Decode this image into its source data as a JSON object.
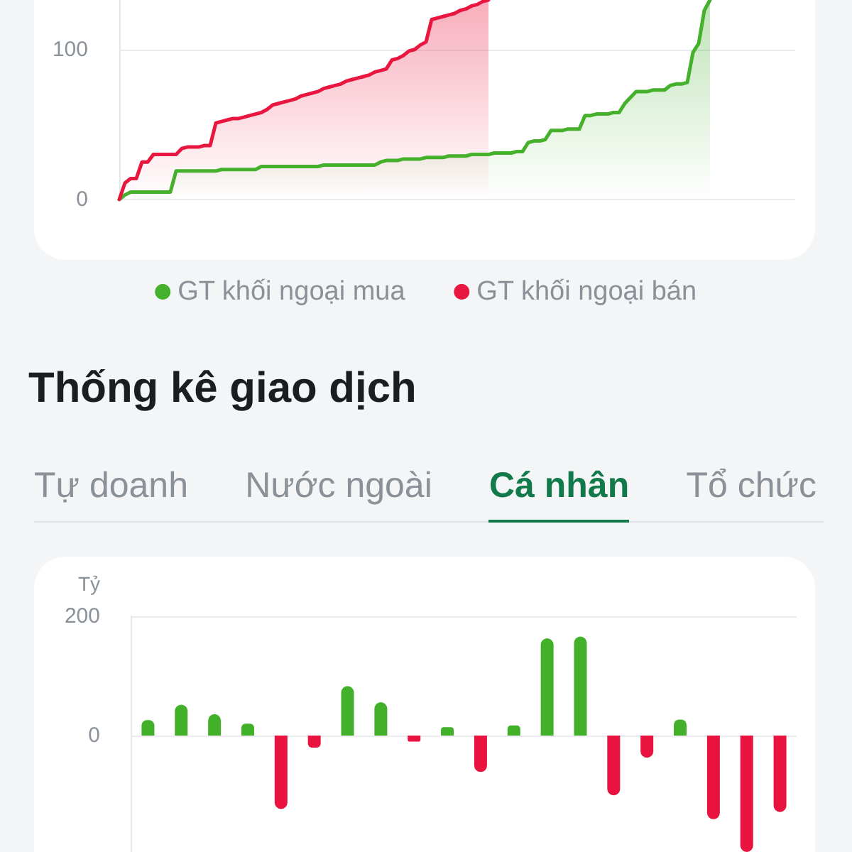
{
  "chart_data": [
    {
      "type": "area",
      "categories": [
        null,
        null,
        null,
        null,
        null,
        null,
        null,
        null,
        null,
        null,
        null,
        null,
        null,
        null,
        null,
        null,
        null,
        null,
        null,
        null,
        null,
        null,
        null,
        null,
        null,
        null,
        null,
        null,
        null,
        null,
        null,
        null,
        null,
        null,
        null,
        null,
        null,
        null,
        null,
        null,
        null,
        null,
        null,
        null,
        null,
        null,
        null,
        null,
        null,
        null,
        null,
        null,
        null,
        null,
        null,
        null,
        null,
        null,
        null,
        null,
        null,
        null,
        null,
        null,
        null,
        null,
        null,
        null,
        null,
        null,
        null,
        null,
        null,
        null,
        null,
        null,
        null,
        null,
        null,
        null,
        null,
        null,
        null,
        null,
        null,
        null,
        null,
        null,
        null,
        null,
        null,
        null,
        null,
        null,
        null,
        null,
        null,
        null,
        null,
        null,
        null,
        null,
        null,
        null,
        null
      ],
      "series": [
        {
          "name": "GT khối ngoại mua",
          "color": "#45b02c",
          "values": [
            0,
            3,
            5,
            5,
            5,
            5,
            5,
            5,
            5,
            5,
            19,
            19,
            19,
            19,
            19,
            19,
            19,
            19,
            20,
            20,
            20,
            20,
            20,
            20,
            20,
            22,
            22,
            22,
            22,
            22,
            22,
            22,
            22,
            22,
            22,
            22,
            23,
            23,
            23,
            23,
            23,
            23,
            23,
            23,
            23,
            23,
            25,
            26,
            26,
            26,
            27,
            27,
            27,
            27,
            28,
            28,
            28,
            28,
            29,
            29,
            29,
            29,
            30,
            30,
            30,
            30,
            31,
            31,
            31,
            31,
            32,
            32,
            38,
            39,
            39,
            40,
            46,
            46,
            46,
            47,
            47,
            47,
            56,
            56,
            57,
            57,
            57,
            58,
            58,
            64,
            68,
            72,
            72,
            72,
            73,
            73,
            73,
            76,
            77,
            77,
            78,
            98,
            104,
            126,
            133
          ]
        },
        {
          "name": "GT khối ngoại bán",
          "color": "#e9163f",
          "values": [
            0,
            11,
            14,
            14,
            25,
            25,
            30,
            30,
            30,
            30,
            30,
            34,
            35,
            35,
            35,
            36,
            36,
            51,
            52,
            53,
            54,
            54,
            55,
            56,
            57,
            58,
            60,
            63,
            64,
            65,
            66,
            67,
            69,
            70,
            71,
            72,
            74,
            75,
            76,
            77,
            79,
            80,
            81,
            82,
            83,
            85,
            86,
            87,
            93,
            94,
            96,
            99,
            100,
            103,
            105,
            120,
            121,
            122,
            123,
            124,
            126,
            127,
            129,
            130,
            132,
            133,
            null,
            null,
            null,
            null,
            null,
            null,
            null,
            null,
            null,
            null,
            null,
            null,
            null,
            null,
            null,
            null,
            null,
            null,
            null,
            null,
            null,
            null,
            null,
            null,
            null,
            null,
            null,
            null,
            null,
            null,
            null,
            null,
            null,
            null,
            null,
            null,
            null,
            null,
            null
          ]
        }
      ],
      "ylim": [
        0,
        133
      ],
      "yticks": [
        0,
        100
      ],
      "grid": "y",
      "legend": "bottom",
      "tick_labels": "y"
    },
    {
      "type": "bar",
      "title": "Thống kê giao dịch",
      "annotations": [
        "Tự doanh",
        "Nước ngoài",
        "Cá nhân",
        "Tổ chức"
      ],
      "ylabel": "Tỷ",
      "categories": [
        null,
        null,
        null,
        null,
        null,
        null,
        null,
        null,
        null,
        null,
        null,
        null,
        null,
        null,
        null,
        null,
        null,
        null,
        null,
        null
      ],
      "values": [
        26,
        52,
        36,
        20,
        -123,
        -20,
        83,
        56,
        -10,
        14,
        -61,
        17,
        163,
        166,
        -100,
        -37,
        27,
        -140,
        -195,
        -128
      ],
      "colors": [
        "#43b02a",
        "#43b02a",
        "#43b02a",
        "#43b02a",
        "#e8133f",
        "#e8133f",
        "#43b02a",
        "#43b02a",
        "#e8133f",
        "#43b02a",
        "#e8133f",
        "#43b02a",
        "#43b02a",
        "#43b02a",
        "#e8133f",
        "#e8133f",
        "#43b02a",
        "#e8133f",
        "#e8133f",
        "#e8133f"
      ],
      "ylim": [
        -195,
        200
      ],
      "yticks": [
        0,
        200
      ],
      "grid": "y",
      "tick_labels": "y"
    }
  ]
}
